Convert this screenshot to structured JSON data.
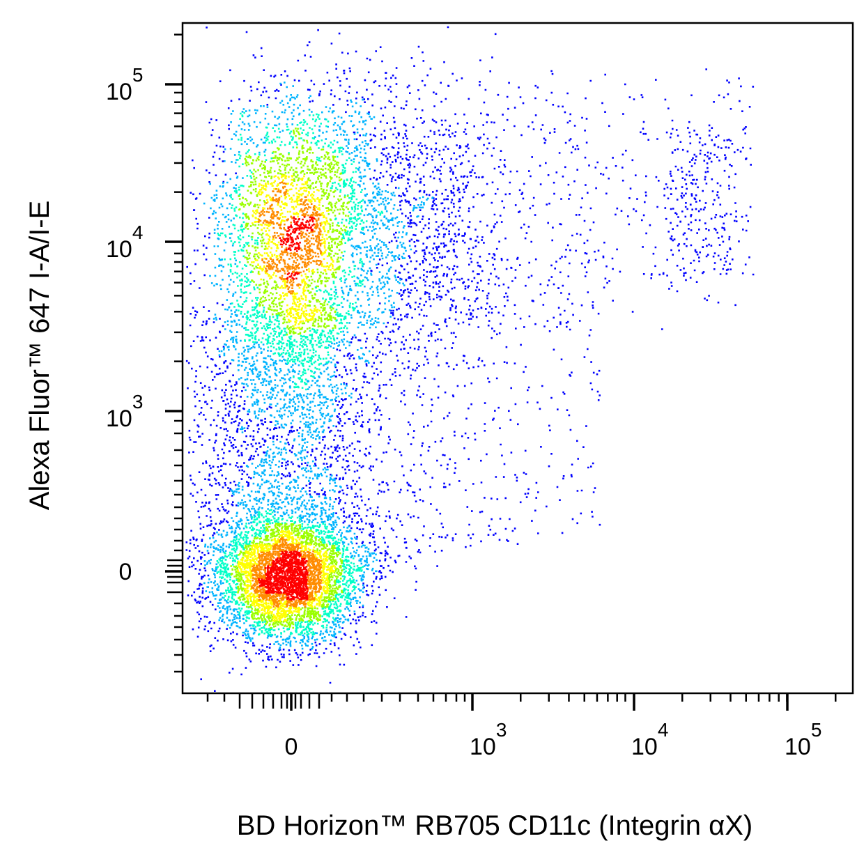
{
  "chart_data": {
    "type": "scatter",
    "subtype": "flow-cytometry pseudocolor density dot plot (biexponential axes)",
    "xlabel": "BD Horizon™ RB705 CD11c (Integrin αX)",
    "ylabel": "Alexa Fluor™ 647 I-A/I-E",
    "x_scale": "biexponential",
    "y_scale": "biexponential",
    "x_ticks": [
      {
        "value": 0,
        "base": "0",
        "exp": ""
      },
      {
        "value": 1000,
        "base": "10",
        "exp": "3"
      },
      {
        "value": 10000,
        "base": "10",
        "exp": "4"
      },
      {
        "value": 100000,
        "base": "10",
        "exp": "5"
      }
    ],
    "y_ticks": [
      {
        "value": 0,
        "base": "0",
        "exp": ""
      },
      {
        "value": 1000,
        "base": "10",
        "exp": "3"
      },
      {
        "value": 10000,
        "base": "10",
        "exp": "4"
      },
      {
        "value": 100000,
        "base": "10",
        "exp": "5"
      }
    ],
    "density_colors": [
      "#0000ff",
      "#00b4ff",
      "#00ffc8",
      "#9bff00",
      "#ffff00",
      "#ff8c00",
      "#ff0000"
    ],
    "populations": [
      {
        "name": "",
        "x_center": 0,
        "y_center": 10000,
        "approx_events": 9000
      },
      {
        "name": "",
        "x_center": 0,
        "y_center": 0,
        "approx_events": 5000
      },
      {
        "name": "",
        "x_range": [
          2000,
          50000
        ],
        "y_range": [
          8000,
          90000
        ],
        "approx_events": 550
      }
    ],
    "grid": false,
    "legend": "none"
  }
}
